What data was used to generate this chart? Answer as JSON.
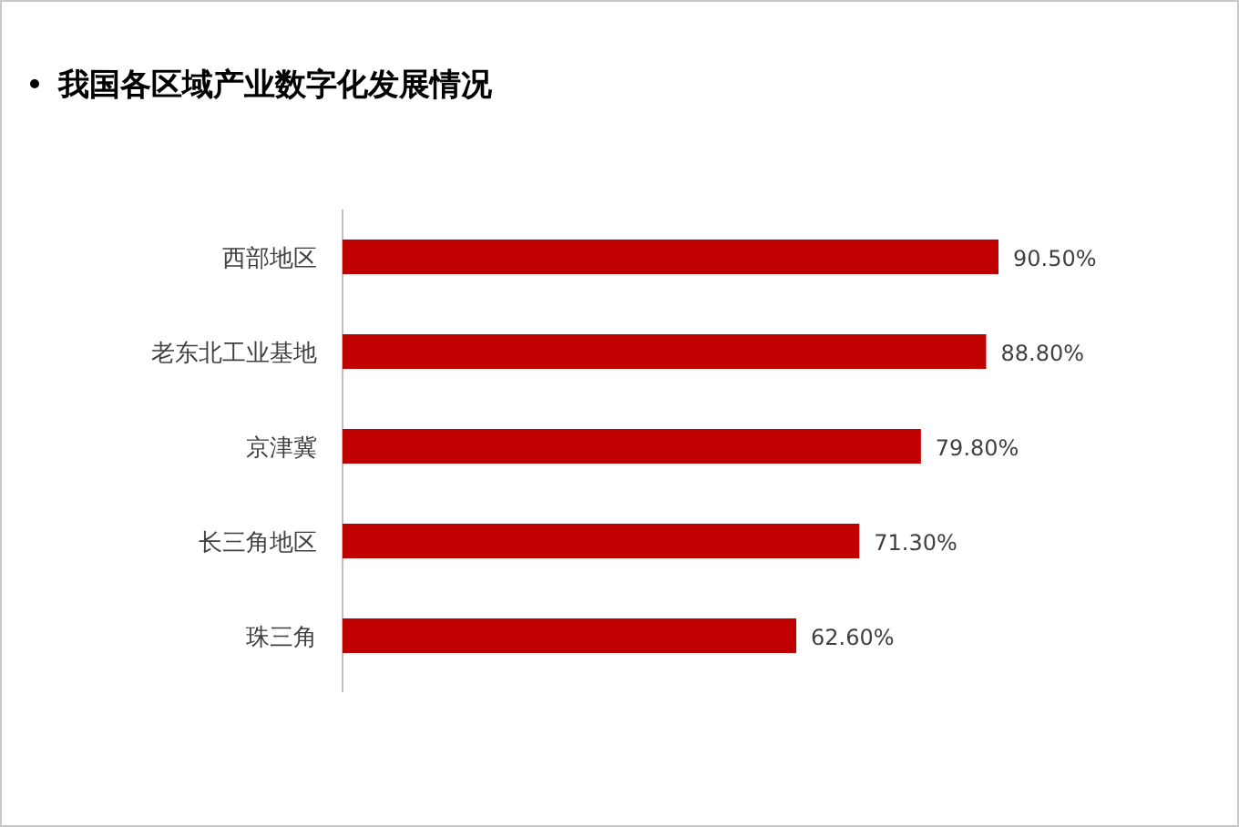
{
  "chart_data": {
    "type": "bar",
    "orientation": "horizontal",
    "title": "我国各区域产业数字化发展情况",
    "categories": [
      "西部地区",
      "老东北工业基地",
      "京津冀",
      "长三角地区",
      "珠三角"
    ],
    "values": [
      90.5,
      88.8,
      79.8,
      71.3,
      62.6
    ],
    "value_labels": [
      "90.50%",
      "88.80%",
      "79.80%",
      "71.30%",
      "62.60%"
    ],
    "color": "#c00000"
  }
}
